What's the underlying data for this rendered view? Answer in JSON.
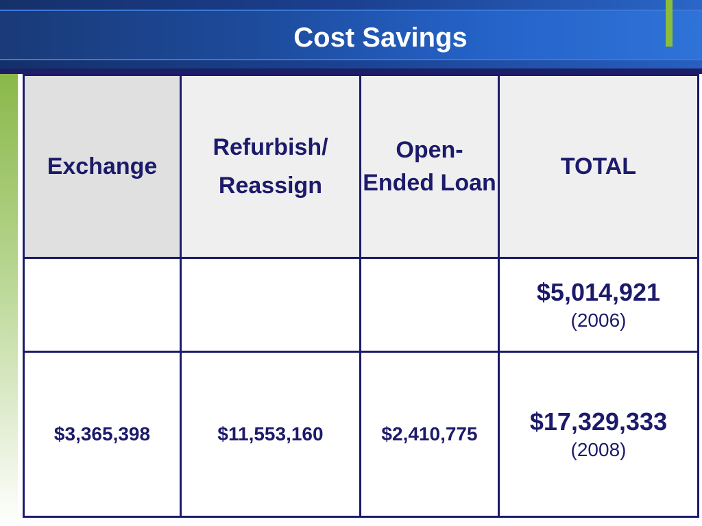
{
  "slide": {
    "title": "Cost Savings"
  },
  "table": {
    "headers": {
      "exchange": "Exchange",
      "refurbish": "Refurbish/ Reassign",
      "loan": "Open- Ended Loan",
      "total": "TOTAL"
    },
    "row_2006": {
      "exchange": "",
      "refurbish": "",
      "loan": "",
      "total": "$5,014,921",
      "year": "(2006)"
    },
    "row_2008": {
      "exchange": "$3,365,398",
      "refurbish": "$11,553,160",
      "loan": "$2,410,775",
      "total": "$17,329,333",
      "year": "(2008)"
    }
  },
  "colors": {
    "title_bar": "#1d4a9a",
    "table_text": "#1c1a6a",
    "accent_green": "#8bbd3c"
  }
}
